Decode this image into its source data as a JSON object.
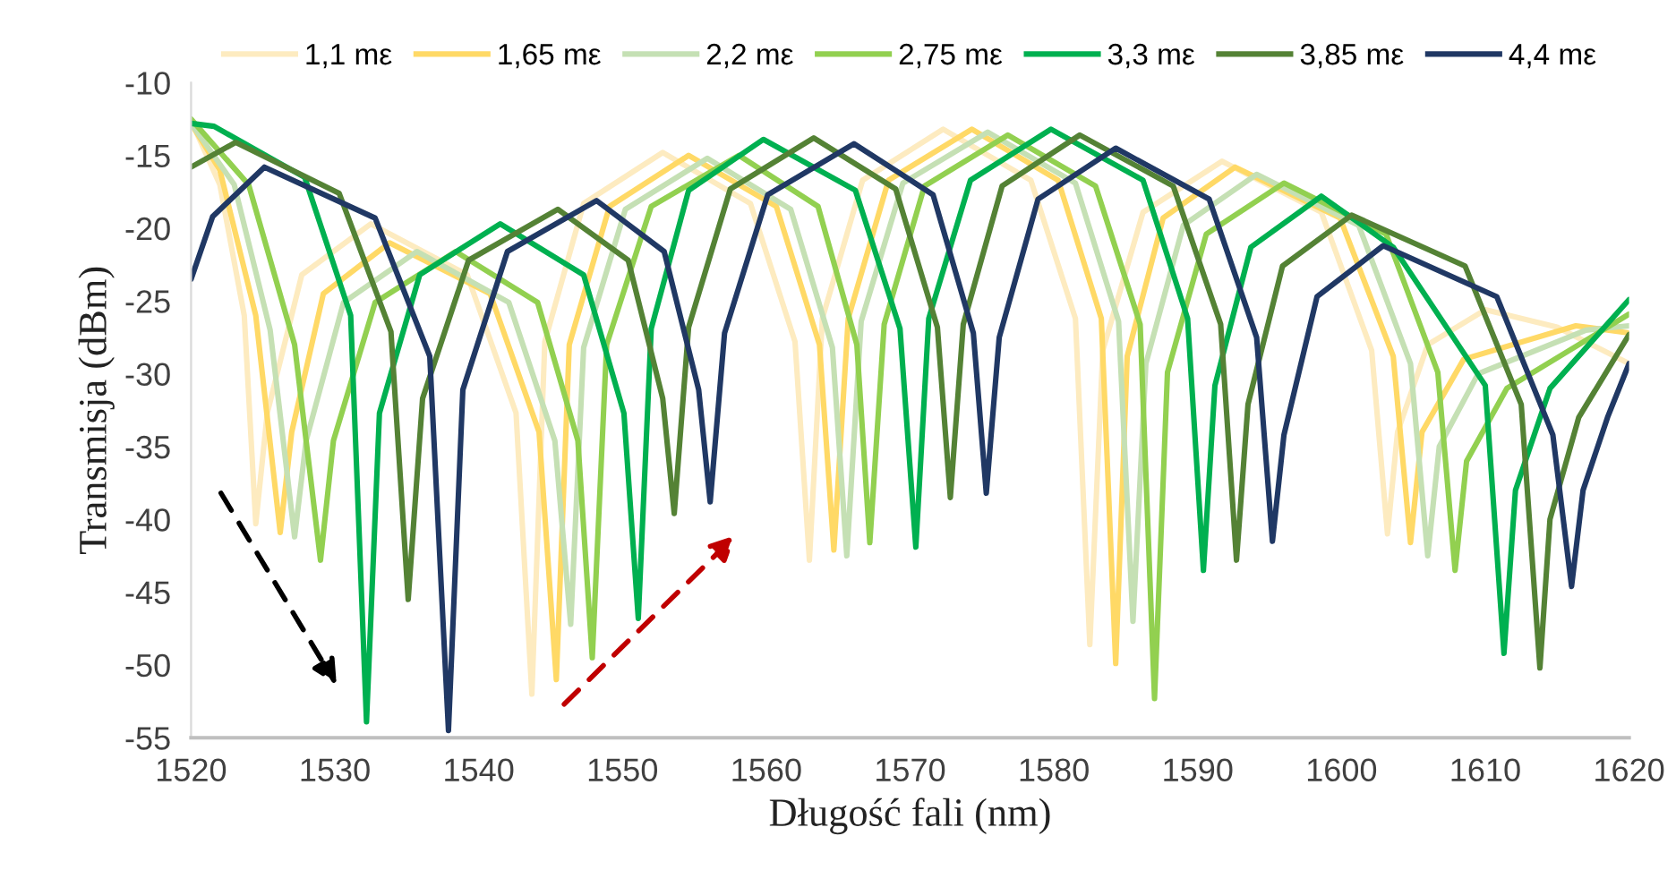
{
  "chart_data": {
    "type": "line",
    "xlabel": "Długość fali (nm)",
    "ylabel": "Transmisja (dBm)",
    "xlim": [
      1520,
      1620
    ],
    "xticks": [
      1520,
      1530,
      1540,
      1550,
      1560,
      1570,
      1580,
      1590,
      1600,
      1610,
      1620
    ],
    "ylim": [
      -55,
      -10
    ],
    "yticks": [
      -55,
      -50,
      -45,
      -40,
      -35,
      -30,
      -25,
      -20,
      -15,
      -10
    ],
    "grid": false,
    "legend": "top",
    "marker": "none",
    "line_style": "solid",
    "series": [
      {
        "name": "1,1 mε",
        "color": "#fdebc0",
        "x": [
          1520,
          1522,
          1523.7,
          1524.5,
          1525.3,
          1527.7,
          1532.5,
          1539.2,
          1542.6,
          1543.7,
          1544.6,
          1547.3,
          1552.8,
          1558.9,
          1562,
          1563,
          1563.9,
          1566.7,
          1572.3,
          1578.4,
          1581.5,
          1582.5,
          1583.4,
          1586.2,
          1591.7,
          1598.6,
          1602.1,
          1603.2,
          1603.9,
          1606,
          1610,
          1615,
          1620
        ],
        "values": [
          -12.6,
          -17,
          -26,
          -40.3,
          -32.7,
          -23.2,
          -19.7,
          -23.2,
          -32.7,
          -52,
          -27.8,
          -18.3,
          -14.8,
          -18.3,
          -27.8,
          -42.8,
          -26.2,
          -16.7,
          -13.2,
          -16.7,
          -26.2,
          -48.6,
          -28.4,
          -18.9,
          -15.4,
          -18.9,
          -28.4,
          -41,
          -34,
          -28,
          -25.6,
          -26.8,
          -29.3
        ]
      },
      {
        "name": "1,65 mε",
        "color": "#ffd966",
        "x": [
          1520,
          1522,
          1524.5,
          1526.2,
          1527,
          1529.2,
          1533.8,
          1540.8,
          1544.2,
          1545.4,
          1546.3,
          1549.1,
          1554.6,
          1560.7,
          1563.7,
          1564.7,
          1565.7,
          1568.5,
          1574.3,
          1580.3,
          1583.3,
          1584.3,
          1585.1,
          1587.6,
          1592.6,
          1599.9,
          1603.6,
          1604.8,
          1605.6,
          1608.5,
          1616.3,
          1620
        ],
        "values": [
          -12.8,
          -16,
          -26,
          -40.9,
          -34,
          -24.5,
          -21,
          -24.5,
          -34,
          -51,
          -28,
          -18.5,
          -15,
          -18.5,
          -28,
          -42.1,
          -26.2,
          -16.7,
          -13.2,
          -16.7,
          -26.2,
          -49.9,
          -28.8,
          -19.3,
          -15.8,
          -19.3,
          -28.8,
          -41.6,
          -34,
          -29,
          -26.7,
          -27.2
        ]
      },
      {
        "name": "2,2 mε",
        "color": "#c5e0b4",
        "x": [
          1520,
          1523,
          1525.5,
          1527.2,
          1528,
          1530.6,
          1535.7,
          1542.1,
          1545.3,
          1546.4,
          1547.3,
          1550.2,
          1555.9,
          1561.7,
          1564.6,
          1565.6,
          1566.6,
          1569.5,
          1575.4,
          1581.5,
          1584.5,
          1585.5,
          1586.4,
          1589,
          1594.1,
          1601.2,
          1604.8,
          1606,
          1606.8,
          1609.5,
          1617,
          1620
        ],
        "values": [
          -12.8,
          -17,
          -27,
          -41.2,
          -34.6,
          -25.1,
          -21.6,
          -25.1,
          -34.6,
          -47.2,
          -28.2,
          -18.7,
          -15.2,
          -18.7,
          -28.2,
          -42.5,
          -26.4,
          -16.9,
          -13.4,
          -16.9,
          -26.4,
          -47,
          -29.3,
          -19.8,
          -16.3,
          -19.8,
          -29.3,
          -42.5,
          -35,
          -30,
          -27,
          -26.7
        ]
      },
      {
        "name": "2,75 mε",
        "color": "#92d050",
        "x": [
          1520,
          1524,
          1527.2,
          1529,
          1529.9,
          1532.8,
          1538.4,
          1544.1,
          1546.9,
          1547.9,
          1548.9,
          1552,
          1558.1,
          1563.6,
          1566.3,
          1567.2,
          1568.2,
          1571,
          1576.8,
          1582.9,
          1586,
          1587,
          1587.9,
          1590.6,
          1596,
          1603.1,
          1606.7,
          1607.9,
          1608.7,
          1611.5,
          1620
        ],
        "values": [
          -12.5,
          -17,
          -28,
          -42.8,
          -34.6,
          -25.1,
          -21.6,
          -25.1,
          -34.6,
          -49.5,
          -28,
          -18.5,
          -15,
          -18.5,
          -28,
          -41.6,
          -26.6,
          -17.1,
          -13.6,
          -17.1,
          -26.6,
          -52.3,
          -29.9,
          -20.4,
          -16.9,
          -20.4,
          -29.9,
          -43.5,
          -36,
          -31,
          -25.9
        ]
      },
      {
        "name": "3,3 mε",
        "color": "#00b050",
        "x": [
          1520,
          1521.6,
          1527.9,
          1531.1,
          1532.2,
          1533.1,
          1535.9,
          1541.5,
          1547.3,
          1550.1,
          1551.1,
          1552,
          1554.6,
          1559.8,
          1566.2,
          1569.3,
          1570.4,
          1571.3,
          1574.2,
          1579.8,
          1586.2,
          1589.3,
          1590.4,
          1591.2,
          1593.7,
          1598.6,
          1603.6,
          1610,
          1611.3,
          1612.1,
          1614.5,
          1620
        ],
        "values": [
          -12.8,
          -13,
          -16.5,
          -26,
          -53.9,
          -32.7,
          -23.2,
          -19.7,
          -23.2,
          -32.7,
          -46.8,
          -26.9,
          -17.4,
          -13.9,
          -17.4,
          -26.9,
          -41.9,
          -26.2,
          -16.7,
          -13.2,
          -16.7,
          -26.2,
          -43.5,
          -30.8,
          -21.3,
          -17.8,
          -21.3,
          -30.8,
          -49.2,
          -38,
          -31,
          -24.9
        ]
      },
      {
        "name": "3,85 mε",
        "color": "#548235",
        "x": [
          1520,
          1523.1,
          1530.3,
          1533.9,
          1535.1,
          1536.1,
          1539.3,
          1545.5,
          1550.4,
          1552.8,
          1553.6,
          1554.6,
          1557.5,
          1563.3,
          1569,
          1571.9,
          1572.8,
          1573.7,
          1576.4,
          1581.8,
          1588.3,
          1591.6,
          1592.7,
          1593.5,
          1595.9,
          1600.7,
          1608.6,
          1612.5,
          1613.8,
          1614.5,
          1616.5,
          1620
        ],
        "values": [
          -15.8,
          -14.1,
          -17.6,
          -27.1,
          -45.5,
          -31.7,
          -22.2,
          -18.7,
          -22.2,
          -31.7,
          -39.6,
          -26.8,
          -17.3,
          -13.8,
          -17.3,
          -26.8,
          -38.5,
          -26.6,
          -17.1,
          -13.6,
          -17.1,
          -26.6,
          -42.8,
          -32.1,
          -22.6,
          -19.1,
          -22.6,
          -32.1,
          -50.2,
          -40,
          -33,
          -27.3
        ]
      },
      {
        "name": "4,4 mε",
        "color": "#203864",
        "x": [
          1520,
          1521.5,
          1525.1,
          1532.8,
          1536.6,
          1537.9,
          1538.9,
          1542,
          1548.2,
          1552.9,
          1555.3,
          1556.1,
          1557.1,
          1560.1,
          1566.1,
          1571.6,
          1574.4,
          1575.3,
          1576.2,
          1578.9,
          1584.3,
          1590.8,
          1594.1,
          1595.2,
          1596,
          1598.3,
          1602.9,
          1610.8,
          1614.7,
          1616,
          1616.8,
          1618.5,
          1620
        ],
        "values": [
          -23.5,
          -19.2,
          -15.8,
          -19.3,
          -28.8,
          -54.5,
          -31.1,
          -21.6,
          -18.1,
          -21.6,
          -31.1,
          -38.8,
          -27.2,
          -17.7,
          -14.2,
          -17.7,
          -27.2,
          -38.2,
          -27.5,
          -18,
          -14.5,
          -18,
          -27.5,
          -41.5,
          -34.2,
          -24.7,
          -21.2,
          -24.7,
          -34.2,
          -44.6,
          -38,
          -33,
          -29.3
        ]
      }
    ]
  }
}
